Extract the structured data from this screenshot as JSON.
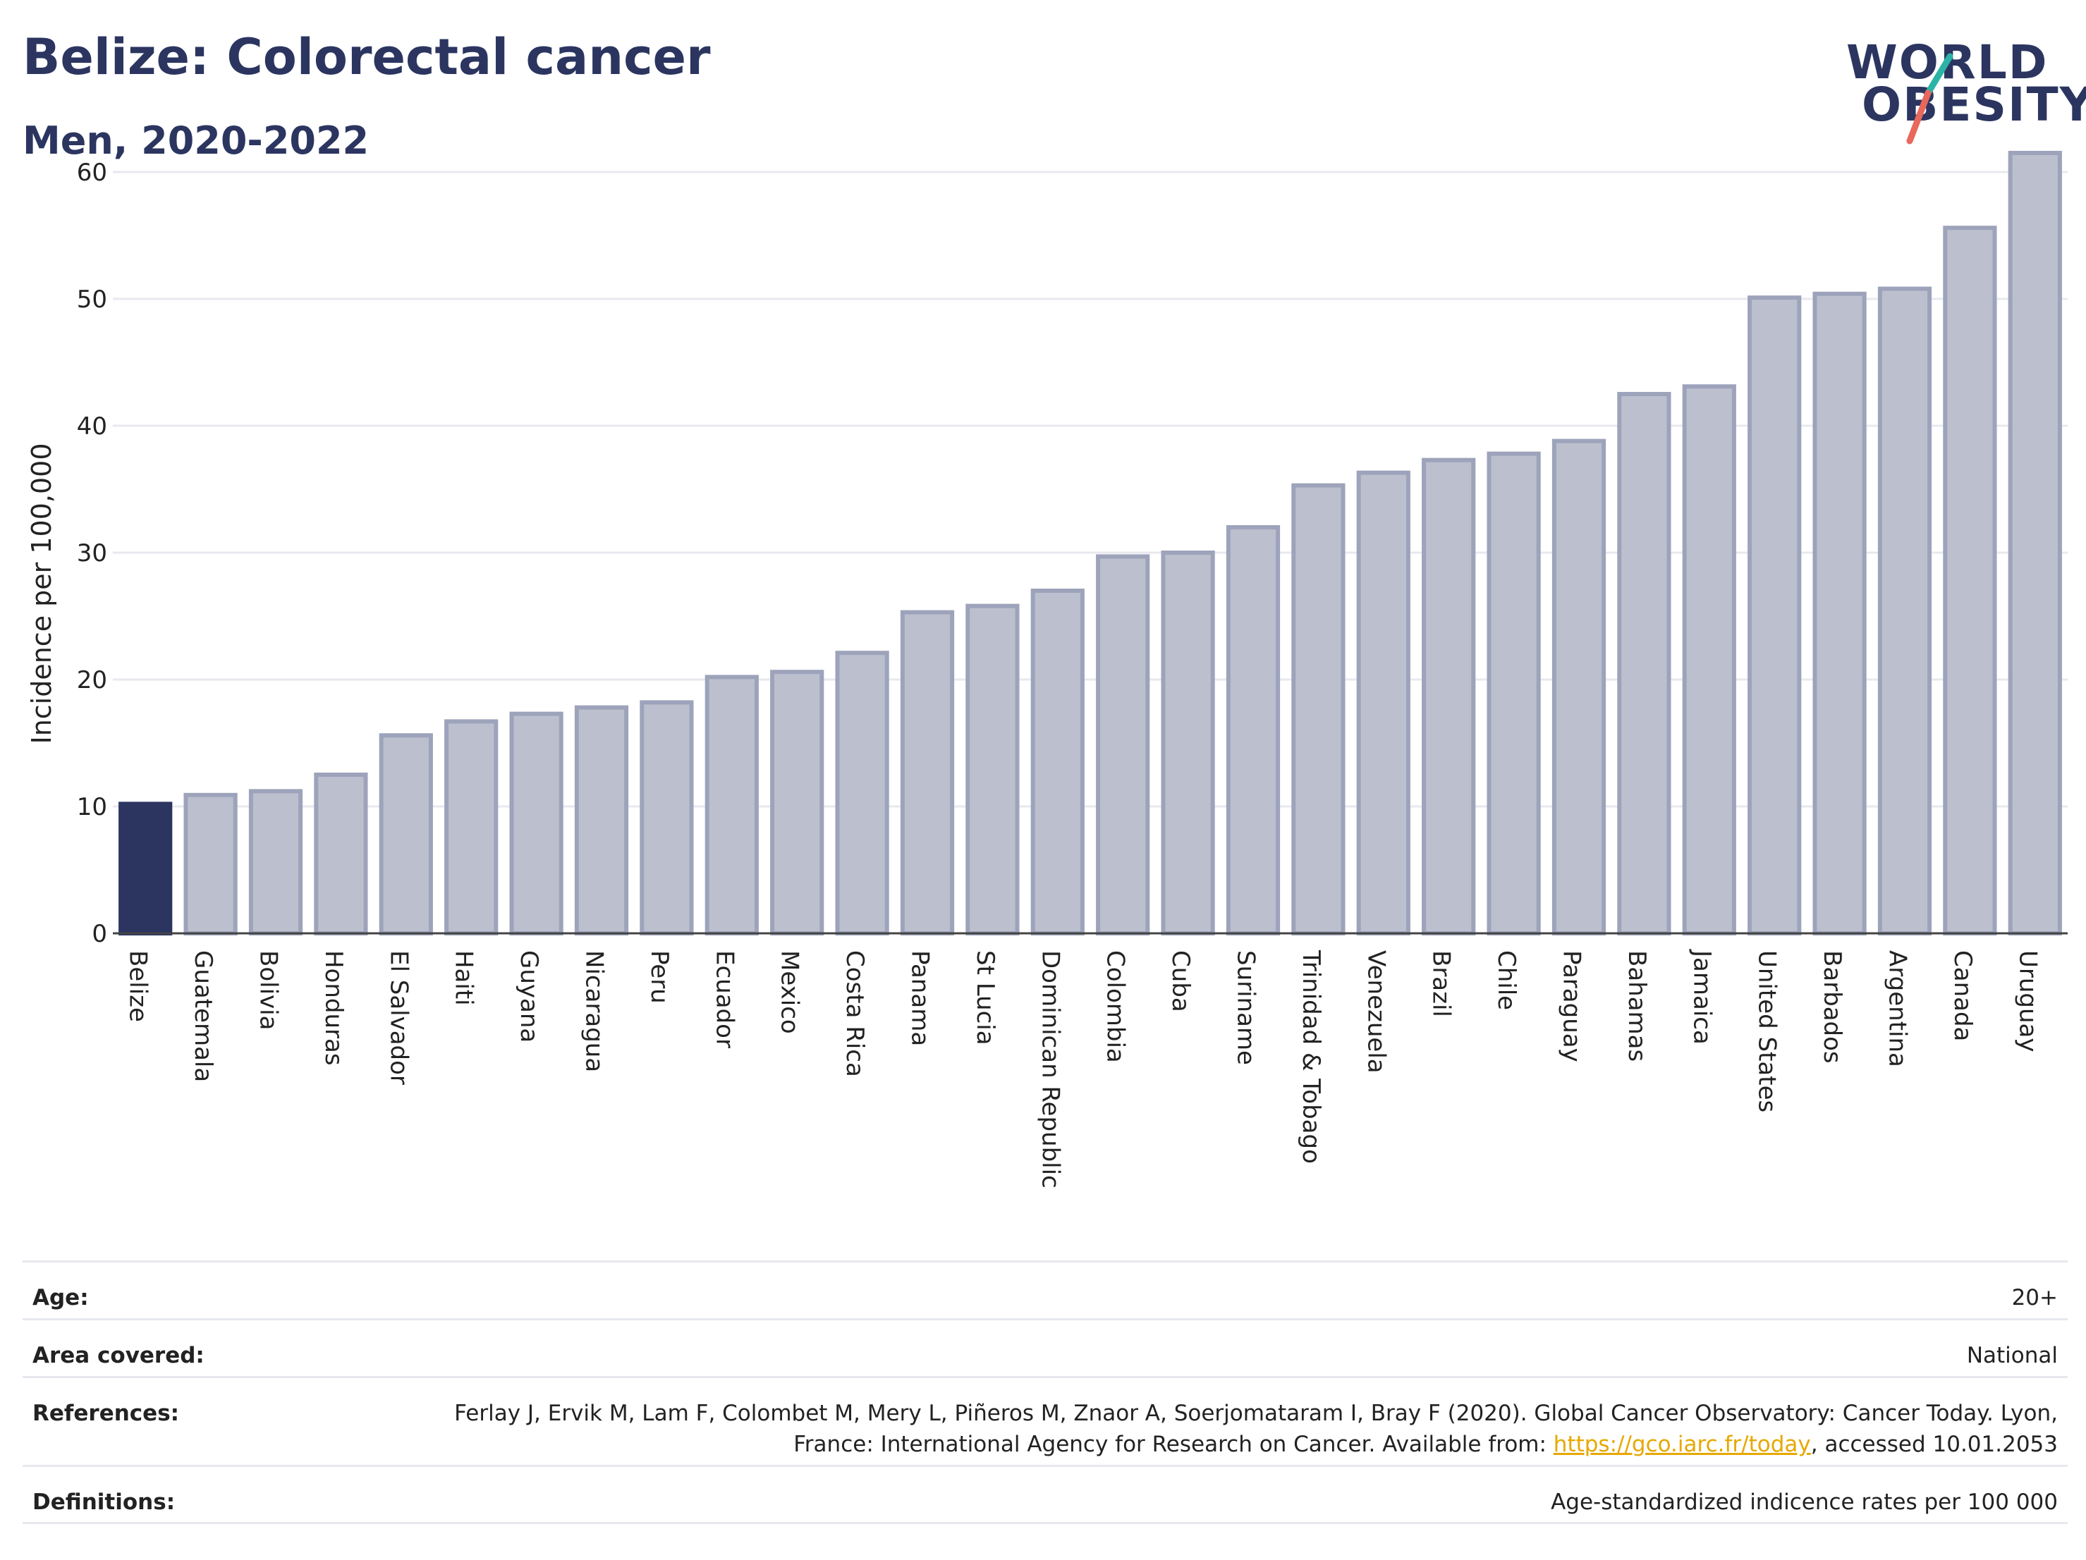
{
  "header": {
    "title": "Belize: Colorectal cancer",
    "subtitle": "Men, 2020-2022"
  },
  "logo": {
    "line1": "WORLD",
    "line2": "OBESITY",
    "accent_colors": [
      "#2bb3a6",
      "#e8685c"
    ]
  },
  "chart_data": {
    "type": "bar",
    "ylabel": "Incidence per 100,000",
    "xlabel": "",
    "ylim": [
      0,
      62
    ],
    "yticks": [
      0,
      10,
      20,
      30,
      40,
      50,
      60
    ],
    "grid": true,
    "highlight_category": "Belize",
    "highlight_color": "#2b3560",
    "bar_color": "#bcc0ce",
    "bar_edge_color": "#9da3ba",
    "categories": [
      "Belize",
      "Guatemala",
      "Bolivia",
      "Honduras",
      "El Salvador",
      "Haiti",
      "Guyana",
      "Nicaragua",
      "Peru",
      "Ecuador",
      "Mexico",
      "Costa Rica",
      "Panama",
      "St Lucia",
      "Dominican Republic",
      "Colombia",
      "Cuba",
      "Suriname",
      "Trinidad & Tobago",
      "Venezuela",
      "Brazil",
      "Chile",
      "Paraguay",
      "Bahamas",
      "Jamaica",
      "United States",
      "Barbados",
      "Argentina",
      "Canada",
      "Uruguay"
    ],
    "values": [
      10.2,
      10.9,
      11.2,
      12.5,
      15.6,
      16.7,
      17.3,
      17.8,
      18.2,
      20.2,
      20.6,
      22.1,
      25.3,
      25.8,
      27.0,
      29.7,
      30.0,
      32.0,
      35.3,
      36.3,
      37.3,
      37.8,
      38.8,
      42.5,
      43.1,
      50.1,
      50.4,
      50.8,
      55.6,
      61.5
    ]
  },
  "info": {
    "age_label": "Age:",
    "age_value": "20+",
    "area_label": "Area covered:",
    "area_value": "National",
    "references_label": "References:",
    "references_text_before": "Ferlay J, Ervik M, Lam F, Colombet M, Mery L, Piñeros M, Znaor A, Soerjomataram I, Bray F (2020). Global Cancer Observatory: Cancer Today. Lyon, France: International Agency for Research on Cancer. Available from: ",
    "references_link": "https://gco.iarc.fr/today",
    "references_text_after": ", accessed 10.01.2053",
    "definitions_label": "Definitions:",
    "definitions_value": "Age-standardized indicence rates per 100 000"
  }
}
